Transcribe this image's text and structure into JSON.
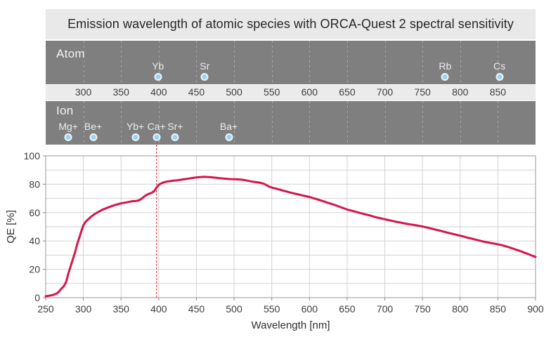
{
  "title": "Emission wavelength of atomic species with ORCA-Quest 2 spectral sensitivity",
  "bands": {
    "atom": {
      "label": "Atom",
      "species": [
        {
          "name": "Yb",
          "wavelength_nm": 399
        },
        {
          "name": "Sr",
          "wavelength_nm": 461
        },
        {
          "name": "Rb",
          "wavelength_nm": 780
        },
        {
          "name": "Cs",
          "wavelength_nm": 852
        }
      ]
    },
    "ion": {
      "label": "Ion",
      "species": [
        {
          "name": "Mg+",
          "wavelength_nm": 280
        },
        {
          "name": "Be+",
          "wavelength_nm": 313
        },
        {
          "name": "Yb+",
          "wavelength_nm": 369
        },
        {
          "name": "Ca+",
          "wavelength_nm": 397
        },
        {
          "name": "Sr+",
          "wavelength_nm": 422
        },
        {
          "name": "Ba+",
          "wavelength_nm": 493
        }
      ]
    },
    "scale_ticks": [
      300,
      350,
      400,
      450,
      500,
      550,
      600,
      650,
      700,
      750,
      800,
      850
    ]
  },
  "chart_data": {
    "type": "line",
    "title": "ORCA-Quest 2 spectral sensitivity",
    "xlabel": "Wavelength [nm]",
    "ylabel": "QE [%]",
    "xlim": [
      250,
      900
    ],
    "ylim": [
      0,
      100
    ],
    "x_ticks": [
      250,
      300,
      350,
      400,
      450,
      500,
      550,
      600,
      650,
      700,
      750,
      800,
      850,
      900
    ],
    "y_ticks": [
      0,
      20,
      40,
      60,
      80,
      100
    ],
    "grid": true,
    "grid_step_y": 10,
    "legend": "none",
    "series": [
      {
        "name": "QE",
        "color": "#d4164b",
        "x": [
          250,
          255,
          260,
          265,
          268,
          271,
          274,
          277,
          280,
          283,
          286,
          289,
          292,
          295,
          298,
          300,
          303,
          306,
          310,
          315,
          320,
          325,
          330,
          335,
          340,
          345,
          350,
          355,
          360,
          365,
          370,
          373,
          376,
          379,
          382,
          385,
          388,
          391,
          394,
          397,
          400,
          403,
          406,
          410,
          415,
          420,
          425,
          430,
          435,
          440,
          445,
          450,
          455,
          460,
          465,
          470,
          475,
          480,
          485,
          490,
          495,
          500,
          505,
          510,
          515,
          520,
          525,
          530,
          535,
          540,
          543,
          546,
          550,
          555,
          560,
          565,
          570,
          575,
          580,
          585,
          590,
          595,
          600,
          605,
          610,
          615,
          620,
          625,
          630,
          635,
          640,
          645,
          650,
          655,
          660,
          665,
          670,
          675,
          680,
          685,
          690,
          695,
          700,
          705,
          710,
          715,
          720,
          725,
          730,
          735,
          740,
          745,
          750,
          755,
          760,
          765,
          770,
          775,
          780,
          785,
          790,
          795,
          800,
          805,
          810,
          815,
          820,
          825,
          830,
          835,
          840,
          845,
          850,
          855,
          860,
          865,
          870,
          875,
          880,
          885,
          890,
          895,
          900
        ],
        "y": [
          1,
          1.4,
          2,
          3,
          4.5,
          6.5,
          8,
          11,
          17,
          22,
          27,
          32,
          38,
          43,
          48,
          51,
          53.5,
          55,
          57,
          59,
          60.5,
          62,
          63,
          64,
          65,
          65.8,
          66.5,
          67,
          67.5,
          68,
          68.2,
          68.5,
          69.3,
          70.5,
          71.8,
          72.8,
          73.4,
          74,
          75.2,
          77.5,
          79.5,
          80.5,
          81.2,
          81.8,
          82.2,
          82.5,
          82.8,
          83.2,
          83.6,
          84,
          84.4,
          84.8,
          85,
          85.2,
          85.1,
          84.9,
          84.6,
          84.3,
          84,
          83.8,
          83.6,
          83.5,
          83.4,
          83.2,
          82.8,
          82.3,
          81.8,
          81.4,
          81,
          80.2,
          79.3,
          78.4,
          77.6,
          77,
          76.3,
          75.5,
          74.8,
          74.1,
          73.4,
          72.8,
          72.2,
          71.6,
          71,
          70.2,
          69.4,
          68.5,
          67.7,
          66.8,
          66,
          65.1,
          64.1,
          63.1,
          62.2,
          61.5,
          60.8,
          60,
          59.3,
          58.6,
          58,
          57.2,
          56.5,
          55.9,
          55.3,
          54.7,
          54.1,
          53.5,
          53,
          52.5,
          52,
          51.6,
          51.2,
          50.7,
          50.2,
          49.6,
          48.9,
          48.3,
          47.6,
          47,
          46.3,
          45.6,
          45,
          44.3,
          43.7,
          43,
          42.3,
          41.7,
          41,
          40.3,
          39.7,
          39.1,
          38.6,
          38.1,
          37.6,
          37.1,
          36.3,
          35.5,
          34.6,
          33.7,
          32.8,
          31.8,
          30.8,
          29.7,
          28.7
        ]
      }
    ],
    "annotations": [
      {
        "type": "vline",
        "x": 397,
        "style": "dashed",
        "color": "#e04a42"
      }
    ]
  },
  "colors": {
    "band_background": "#7f7f7f",
    "title_background": "#e9e9e9",
    "scale_background": "#ebebeb",
    "dot_fill": "#9bd2f2",
    "dot_ring": "#eaf6fd",
    "curve": "#d4164b",
    "vline": "#e04a42",
    "grid": "#d2d2d2",
    "axis_border": "#a8a8a8",
    "axis_text": "#3c3c3c"
  }
}
